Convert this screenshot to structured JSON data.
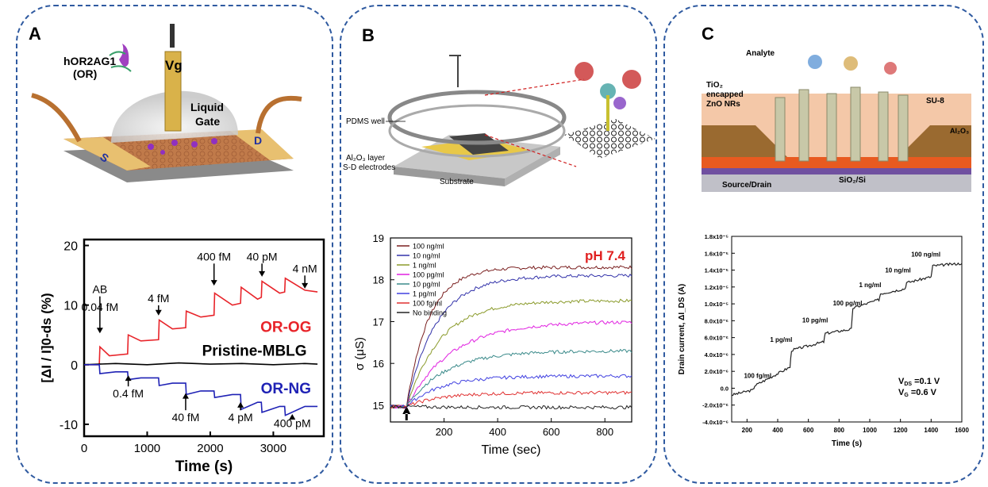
{
  "panels": {
    "A": {
      "label": "A",
      "schematic": {
        "or_label_1": "hOR2AG1",
        "or_label_2": "(OR)",
        "gate_symbol": "I",
        "vg": "Vg",
        "liquid": "Liquid",
        "gate": "Gate",
        "source": "S",
        "drain": "D"
      }
    },
    "B": {
      "label": "B",
      "schematic": {
        "pdms": "PDMS well",
        "al2o3": "Al₂O₃ layer",
        "sd": "S-D electrodes",
        "substrate": "Substrate"
      }
    },
    "C": {
      "label": "C",
      "schematic": {
        "analyte": "Analyte",
        "tio2_1": "TiO₂",
        "tio2_2": "encapped",
        "tio2_3": "ZnO NRs",
        "su8": "SU-8",
        "al2o3": "Al₂O₃",
        "source_drain": "Source/Drain",
        "sio2": "SiO₂/Si"
      }
    }
  },
  "colors": {
    "frame": "#2f5aa0",
    "og": "#e8242a",
    "ng": "#1f22b5",
    "pristine": "#000000",
    "gold": "#d9b24a",
    "ph": "#e02020"
  },
  "chart_data": [
    {
      "type": "line",
      "panel": "A",
      "xlabel": "Time (s)",
      "ylabel": "[ΔI / I]0-ds (%)",
      "xlim": [
        0,
        3800
      ],
      "ylim": [
        -12,
        21
      ],
      "xticks": [
        0,
        1000,
        2000,
        3000
      ],
      "yticks": [
        -10,
        0,
        10,
        20
      ],
      "series": [
        {
          "name": "OR-OG",
          "color": "#e8242a",
          "x": [
            0,
            240,
            250,
            400,
            690,
            700,
            900,
            1180,
            1190,
            1400,
            1610,
            1620,
            1850,
            2060,
            2070,
            2350,
            2480,
            2490,
            2750,
            2810,
            2820,
            3100,
            3180,
            3190,
            3500,
            3700
          ],
          "y": [
            0,
            0,
            3,
            1.5,
            1.8,
            5,
            4,
            4.2,
            7.5,
            6,
            6.2,
            9,
            8,
            8.3,
            12,
            10,
            10.3,
            13,
            11,
            11.3,
            14,
            12,
            12.2,
            14.5,
            12.5,
            12.2
          ]
        },
        {
          "name": "Pristine-MBLG",
          "color": "#000000",
          "x": [
            0,
            500,
            1000,
            1500,
            2000,
            2500,
            3000,
            3500,
            3700
          ],
          "y": [
            0,
            0.2,
            0,
            0.3,
            0.1,
            0.2,
            0,
            0.2,
            0.1
          ]
        },
        {
          "name": "OR-NG",
          "color": "#1f22b5",
          "x": [
            0,
            240,
            250,
            500,
            690,
            700,
            900,
            1180,
            1190,
            1400,
            1610,
            1620,
            1850,
            2060,
            2070,
            2350,
            2480,
            2490,
            2750,
            2810,
            2820,
            3100,
            3180,
            3190,
            3500,
            3700
          ],
          "y": [
            0,
            0,
            -1.5,
            -1.2,
            -1.2,
            -2.5,
            -2.2,
            -2.2,
            -3.5,
            -3.1,
            -3.1,
            -5,
            -4.4,
            -4.4,
            -5.5,
            -5,
            -5,
            -7.5,
            -6.3,
            -6.3,
            -8,
            -7,
            -7,
            -8.5,
            -7,
            -7
          ]
        }
      ],
      "annotations": [
        {
          "text": "AB",
          "x": 250,
          "y": 12,
          "arrow": "down",
          "tip": 5
        },
        {
          "text": "0.04 fM",
          "x": 250,
          "y": 9,
          "arrow": "none",
          "tip": 0
        },
        {
          "text": "4 fM",
          "x": 1180,
          "y": 10.5,
          "arrow": "down",
          "tip": 8
        },
        {
          "text": "400 fM",
          "x": 2060,
          "y": 17.5,
          "arrow": "down",
          "tip": 13
        },
        {
          "text": "40 pM",
          "x": 2820,
          "y": 17.5,
          "arrow": "down",
          "tip": 14.5
        },
        {
          "text": "4 nM",
          "x": 3500,
          "y": 15.5,
          "arrow": "down",
          "tip": 12.5
        },
        {
          "text": "0.4 fM",
          "x": 700,
          "y": -5.5,
          "arrow": "up",
          "tip": -1.5
        },
        {
          "text": "40 fM",
          "x": 1610,
          "y": -9.5,
          "arrow": "up",
          "tip": -4.5
        },
        {
          "text": "4 pM",
          "x": 2480,
          "y": -9.5,
          "arrow": "up",
          "tip": -6
        },
        {
          "text": "400 pM",
          "x": 3300,
          "y": -10.5,
          "arrow": "up",
          "tip": -8
        }
      ],
      "series_labels": [
        {
          "text": "OR-OG",
          "x": 3200,
          "y": 5.5
        },
        {
          "text": "Pristine-MBLG",
          "x": 2700,
          "y": 1.5
        },
        {
          "text": "OR-NG",
          "x": 3200,
          "y": -4.8
        }
      ]
    },
    {
      "type": "line",
      "panel": "B",
      "xlabel": "Time (sec)",
      "ylabel": "σ (μS)",
      "xlim": [
        0,
        900
      ],
      "ylim": [
        14.6,
        19
      ],
      "xticks": [
        200,
        400,
        600,
        800
      ],
      "yticks": [
        15,
        16,
        17,
        18,
        19
      ],
      "annotation": "pH 7.4",
      "arrow_x": 60,
      "series": [
        {
          "name": "100 ng/ml",
          "color": "#7a1f1f",
          "final": 18.3,
          "rate": 0.012
        },
        {
          "name": "10 ng/ml",
          "color": "#3333aa",
          "final": 18.1,
          "rate": 0.009
        },
        {
          "name": "1 ng/ml",
          "color": "#8a9a2a",
          "final": 17.5,
          "rate": 0.008
        },
        {
          "name": "100 pg/ml",
          "color": "#e020e0",
          "final": 17.0,
          "rate": 0.006
        },
        {
          "name": "10 pg/ml",
          "color": "#3a8a8a",
          "final": 16.3,
          "rate": 0.007
        },
        {
          "name": "1 pg/ml",
          "color": "#4040e0",
          "final": 15.7,
          "rate": 0.008
        },
        {
          "name": "100 fg/ml",
          "color": "#e03030",
          "final": 15.3,
          "rate": 0.008
        },
        {
          "name": "No binding",
          "color": "#222222",
          "final": 14.95,
          "rate": 0.01
        }
      ]
    },
    {
      "type": "line",
      "panel": "C",
      "xlabel": "Time (s)",
      "ylabel": "Drain current, ΔI_DS (A)",
      "xlim": [
        100,
        1600
      ],
      "ylim": [
        -4e-06,
        1.8e-05
      ],
      "xticks": [
        200,
        400,
        600,
        800,
        1000,
        1200,
        1400,
        1600
      ],
      "yticks": [
        "-4.0x10⁻⁶",
        "-2.0x10⁻⁶",
        "0.0",
        "2.0x10⁻⁶",
        "4.0x10⁻⁶",
        "6.0x10⁻⁶",
        "8.0x10⁻⁶",
        "1.0x10⁻⁵",
        "1.2x10⁻⁵",
        "1.4x10⁻⁵",
        "1.6x10⁻⁵",
        "1.8x10⁻⁵"
      ],
      "ytick_values": [
        -4e-06,
        -2e-06,
        0,
        2e-06,
        4e-06,
        6e-06,
        8e-06,
        1e-05,
        1.2e-05,
        1.4e-05,
        1.6e-05,
        1.8e-05
      ],
      "series": [
        {
          "name": "",
          "color": "#222222",
          "x": [
            100,
            240,
            250,
            480,
            490,
            700,
            710,
            880,
            890,
            1060,
            1070,
            1230,
            1240,
            1400,
            1410,
            1600
          ],
          "y": [
            -8e-07,
            -2e-07,
            3e-07,
            2.5e-06,
            4.5e-06,
            5.5e-06,
            6.5e-06,
            7e-06,
            9.5e-06,
            1.05e-05,
            1.12e-05,
            1.18e-05,
            1.25e-05,
            1.32e-05,
            1.45e-05,
            1.48e-05
          ]
        }
      ],
      "annotations": [
        {
          "text": "100 fg/ml",
          "x": 180,
          "y": 1.2e-06
        },
        {
          "text": "1 pg/ml",
          "x": 350,
          "y": 5.5e-06
        },
        {
          "text": "10 pg/ml",
          "x": 560,
          "y": 7.8e-06
        },
        {
          "text": "100 pg/ml",
          "x": 760,
          "y": 9.8e-06
        },
        {
          "text": "1 ng/ml",
          "x": 930,
          "y": 1.2e-05
        },
        {
          "text": "10 ng/ml",
          "x": 1100,
          "y": 1.37e-05
        },
        {
          "text": "100 ng/ml",
          "x": 1270,
          "y": 1.56e-05
        }
      ],
      "vds": "V",
      "vds_sub": "DS",
      "vds_val": " =0.1 V",
      "vg": "V",
      "vg_sub": "G",
      "vg_val": " =0.6 V"
    }
  ]
}
